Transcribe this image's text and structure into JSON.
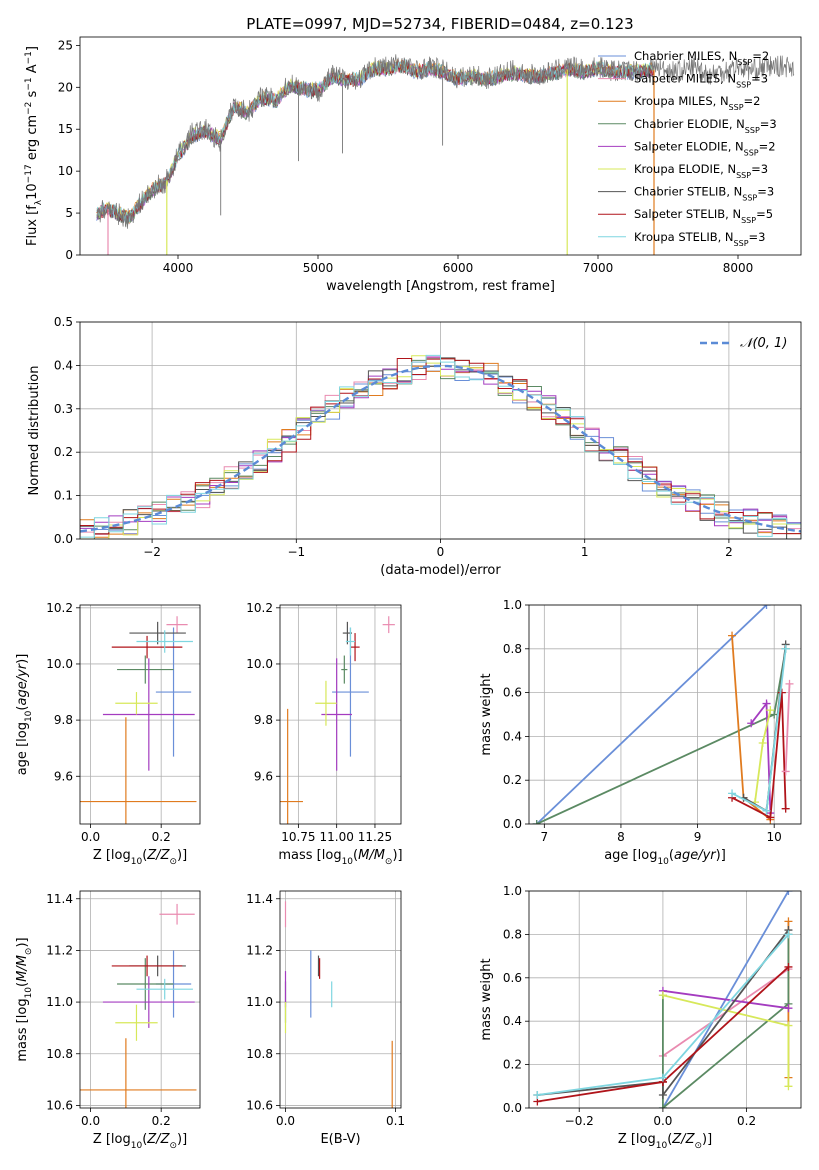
{
  "figure": {
    "title": "PLATE=0997, MJD=52734, FIBERID=0484, z=0.123"
  },
  "models": [
    {
      "name": "Chabrier MILES, N_SSP=2",
      "label_main": "Chabrier MILES, N",
      "label_sub": "SSP",
      "label_tail": "=2",
      "color": "#6a8fd8"
    },
    {
      "name": "Salpeter MILES, N_SSP=3",
      "label_main": "Salpeter MILES, N",
      "label_sub": "SSP",
      "label_tail": "=3",
      "color": "#e98bb0"
    },
    {
      "name": "Kroupa MILES, N_SSP=2",
      "label_main": "Kroupa MILES, N",
      "label_sub": "SSP",
      "label_tail": "=2",
      "color": "#e07b1f"
    },
    {
      "name": "Chabrier ELODIE, N_SSP=3",
      "label_main": "Chabrier ELODIE, N",
      "label_sub": "SSP",
      "label_tail": "=3",
      "color": "#5b8a63"
    },
    {
      "name": "Salpeter ELODIE, N_SSP=2",
      "label_main": "Salpeter ELODIE, N",
      "label_sub": "SSP",
      "label_tail": "=2",
      "color": "#a43cc0"
    },
    {
      "name": "Kroupa ELODIE, N_SSP=3",
      "label_main": "Kroupa ELODIE, N",
      "label_sub": "SSP",
      "label_tail": "=3",
      "color": "#d7e85a"
    },
    {
      "name": "Chabrier STELIB, N_SSP=3",
      "label_main": "Chabrier STELIB, N",
      "label_sub": "SSP",
      "label_tail": "=3",
      "color": "#555555"
    },
    {
      "name": "Salpeter STELIB, N_SSP=5",
      "label_main": "Salpeter STELIB, N",
      "label_sub": "SSP",
      "label_tail": "=5",
      "color": "#b0141a"
    },
    {
      "name": "Kroupa STELIB, N_SSP=3",
      "label_main": "Kroupa STELIB, N",
      "label_sub": "SSP",
      "label_tail": "=3",
      "color": "#7fd6e0"
    }
  ],
  "chart_data": [
    {
      "id": "spectrum",
      "type": "line",
      "xlabel": "wavelength [Angstrom, rest frame]",
      "ylabel": "Flux [f_λ 10^-17 erg cm^-2 s^-1 A^-1]",
      "xlim": [
        3300,
        8450
      ],
      "ylim": [
        0,
        26
      ],
      "xticks": [
        4000,
        5000,
        6000,
        7000,
        8000
      ],
      "yticks": [
        0,
        5,
        10,
        15,
        20,
        25
      ],
      "legend": "upper-right",
      "observed": {
        "name": "data",
        "color": "#777777",
        "x": [
          3420,
          3500,
          3560,
          3650,
          3700,
          3800,
          3850,
          3900,
          3950,
          4000,
          4100,
          4200,
          4300,
          4400,
          4500,
          4600,
          4700,
          4800,
          4900,
          5000,
          5100,
          5200,
          5300,
          5400,
          5500,
          5600,
          5700,
          5800,
          5900,
          6000,
          6100,
          6200,
          6300,
          6400,
          6500,
          6600,
          6700,
          6800,
          6900,
          7000,
          7100,
          7200,
          7300,
          7400,
          7500,
          7600,
          7700,
          7800,
          7900,
          8000,
          8100,
          8200,
          8300,
          8400
        ],
        "y": [
          5.0,
          5.6,
          5.0,
          4.3,
          5.6,
          7.5,
          8.3,
          8.4,
          10.0,
          12.0,
          14.5,
          15.0,
          13.5,
          18.0,
          17.0,
          19.0,
          18.5,
          20.5,
          20.0,
          19.5,
          21.5,
          21.0,
          21.0,
          22.5,
          22.5,
          23.0,
          22.0,
          22.5,
          22.0,
          21.0,
          21.5,
          21.0,
          21.5,
          22.0,
          21.5,
          21.5,
          22.0,
          22.5,
          22.0,
          22.5,
          22.0,
          22.0,
          22.0,
          22.5,
          22.0,
          22.0,
          22.5,
          21.5,
          22.0,
          22.5,
          22.0,
          22.5,
          22.5,
          22.5
        ]
      },
      "model_curve": {
        "x": [
          3420,
          3500,
          3560,
          3650,
          3700,
          3800,
          3850,
          3900,
          3950,
          4000,
          4100,
          4200,
          4300,
          4400,
          4500,
          4600,
          4700,
          4800,
          4900,
          5000,
          5100,
          5200,
          5300,
          5400,
          5500,
          5600,
          5700,
          5800,
          5900,
          6000,
          6100,
          6200,
          6300,
          6400,
          6500,
          6600,
          6700,
          6800,
          6900,
          7000,
          7100,
          7200,
          7300,
          7400
        ],
        "y": [
          5.0,
          5.5,
          5.0,
          4.4,
          5.5,
          7.4,
          8.2,
          8.3,
          9.8,
          11.8,
          14.2,
          14.8,
          13.8,
          17.6,
          17.0,
          18.8,
          18.4,
          20.2,
          19.8,
          19.6,
          21.2,
          20.8,
          21.0,
          22.2,
          22.2,
          22.6,
          21.8,
          22.2,
          21.8,
          21.0,
          21.3,
          20.9,
          21.3,
          21.7,
          21.3,
          21.4,
          21.8,
          22.2,
          21.8,
          22.2,
          21.8,
          21.8,
          21.9,
          22.1
        ]
      },
      "spikes": [
        {
          "x": 3500,
          "model": 1
        },
        {
          "x": 3920,
          "model": 5
        },
        {
          "x": 6780,
          "model": 5
        },
        {
          "x": 7400,
          "model": 2
        }
      ]
    },
    {
      "id": "residuals",
      "type": "histogram",
      "xlabel": "(data-model)/error",
      "ylabel": "Normed distribution",
      "xlim": [
        -2.5,
        2.5
      ],
      "ylim": [
        0,
        0.5
      ],
      "xticks": [
        -2,
        -1,
        0,
        1,
        2
      ],
      "yticks": [
        0.0,
        0.1,
        0.2,
        0.3,
        0.4,
        0.5
      ],
      "grid": true,
      "legend": "upper-right",
      "reference_label": "𝒩(0, 1)",
      "reference_color": "#5b8bd6",
      "bin_width": 0.1
    },
    {
      "id": "age-vs-Z",
      "type": "scatter",
      "xlabel": "Z [log10(Z/Z⊙)]",
      "ylabel": "age [log10(age/yr)]",
      "xlim": [
        -0.03,
        0.31
      ],
      "ylim": [
        9.43,
        10.21
      ],
      "xticks": [
        0.0,
        0.2
      ],
      "yticks": [
        9.6,
        9.8,
        10.0,
        10.2
      ],
      "grid": true,
      "points": [
        {
          "model": 0,
          "x": 0.235,
          "xerr": 0.05,
          "y": 9.9,
          "yerr": 0.23
        },
        {
          "model": 1,
          "x": 0.245,
          "xerr": 0.03,
          "y": 10.14,
          "yerr": 0.03
        },
        {
          "model": 2,
          "x": 0.1,
          "xerr": 0.2,
          "y": 9.51,
          "yerr": 0.3
        },
        {
          "model": 3,
          "x": 0.155,
          "xerr": 0.08,
          "y": 9.98,
          "yerr": 0.05
        },
        {
          "model": 4,
          "x": 0.165,
          "xerr": 0.13,
          "y": 9.82,
          "yerr": 0.2
        },
        {
          "model": 5,
          "x": 0.13,
          "xerr": 0.06,
          "y": 9.86,
          "yerr": 0.04
        },
        {
          "model": 6,
          "x": 0.19,
          "xerr": 0.08,
          "y": 10.11,
          "yerr": 0.04
        },
        {
          "model": 7,
          "x": 0.16,
          "xerr": 0.1,
          "y": 10.06,
          "yerr": 0.04
        },
        {
          "model": 8,
          "x": 0.21,
          "xerr": 0.08,
          "y": 10.08,
          "yerr": 0.04
        }
      ]
    },
    {
      "id": "age-vs-mass",
      "type": "scatter",
      "xlabel": "mass [log10(M/M⊙)]",
      "ylabel": "",
      "xlim": [
        10.63,
        11.42
      ],
      "ylim": [
        9.43,
        10.21
      ],
      "xticks": [
        10.75,
        11.0,
        11.25
      ],
      "xtick_labels": [
        "10.75",
        "11.00",
        "11.25"
      ],
      "yticks": [
        9.6,
        9.8,
        10.0,
        10.2
      ],
      "grid": true,
      "points": [
        {
          "model": 0,
          "x": 11.09,
          "xerr": 0.12,
          "y": 9.9,
          "yerr": 0.23
        },
        {
          "model": 1,
          "x": 11.34,
          "xerr": 0.04,
          "y": 10.14,
          "yerr": 0.03
        },
        {
          "model": 2,
          "x": 10.68,
          "xerr": 0.1,
          "y": 9.51,
          "yerr": 0.33
        },
        {
          "model": 3,
          "x": 11.05,
          "xerr": 0.02,
          "y": 9.98,
          "yerr": 0.05
        },
        {
          "model": 4,
          "x": 11.0,
          "xerr": 0.1,
          "y": 9.82,
          "yerr": 0.2
        },
        {
          "model": 5,
          "x": 10.93,
          "xerr": 0.07,
          "y": 9.86,
          "yerr": 0.08
        },
        {
          "model": 6,
          "x": 11.07,
          "xerr": 0.03,
          "y": 10.11,
          "yerr": 0.04
        },
        {
          "model": 7,
          "x": 11.12,
          "xerr": 0.03,
          "y": 10.06,
          "yerr": 0.05
        },
        {
          "model": 8,
          "x": 11.09,
          "xerr": 0.03,
          "y": 10.08,
          "yerr": 0.05
        }
      ]
    },
    {
      "id": "weight-vs-age",
      "type": "line",
      "xlabel": "age [log10(age/yr)]",
      "ylabel": "mass weight",
      "xlim": [
        6.8,
        10.35
      ],
      "ylim": [
        0,
        1
      ],
      "xticks": [
        7,
        8,
        9,
        10
      ],
      "yticks": [
        0.0,
        0.2,
        0.4,
        0.6,
        0.8,
        1.0
      ],
      "grid": true,
      "series": [
        {
          "model": 0,
          "x": [
            6.9,
            9.9
          ],
          "y": [
            0.0,
            1.0
          ]
        },
        {
          "model": 3,
          "x": [
            6.9,
            10.0,
            10.15
          ],
          "y": [
            0.0,
            0.5,
            0.8
          ]
        },
        {
          "model": 2,
          "x": [
            9.45,
            9.6,
            9.95
          ],
          "y": [
            0.86,
            0.12,
            0.02
          ]
        },
        {
          "model": 4,
          "x": [
            9.7,
            9.9,
            9.95
          ],
          "y": [
            0.46,
            0.55,
            0.05
          ]
        },
        {
          "model": 5,
          "x": [
            9.75,
            9.85,
            9.95
          ],
          "y": [
            0.1,
            0.37,
            0.52
          ]
        },
        {
          "model": 6,
          "x": [
            9.6,
            9.9,
            10.15
          ],
          "y": [
            0.12,
            0.06,
            0.82
          ]
        },
        {
          "model": 7,
          "x": [
            9.45,
            9.95,
            10.1,
            10.15
          ],
          "y": [
            0.12,
            0.03,
            0.6,
            0.07
          ]
        },
        {
          "model": 8,
          "x": [
            9.45,
            9.9,
            10.15
          ],
          "y": [
            0.14,
            0.06,
            0.8
          ]
        },
        {
          "model": 1,
          "x": [
            10.15,
            10.2
          ],
          "y": [
            0.24,
            0.64
          ]
        }
      ]
    },
    {
      "id": "mass-vs-Z",
      "type": "scatter",
      "xlabel": "Z [log10(Z/Z⊙)]",
      "ylabel": "mass [log10(M/M⊙)]",
      "xlim": [
        -0.03,
        0.31
      ],
      "ylim": [
        10.59,
        11.43
      ],
      "xticks": [
        0.0,
        0.2
      ],
      "yticks": [
        10.6,
        10.8,
        11.0,
        11.2,
        11.4
      ],
      "grid": true,
      "points": [
        {
          "model": 0,
          "x": 0.235,
          "xerr": 0.05,
          "y": 11.07,
          "yerr": 0.13
        },
        {
          "model": 1,
          "x": 0.245,
          "xerr": 0.05,
          "y": 11.34,
          "yerr": 0.04
        },
        {
          "model": 2,
          "x": 0.1,
          "xerr": 0.2,
          "y": 10.66,
          "yerr": 0.2
        },
        {
          "model": 3,
          "x": 0.155,
          "xerr": 0.08,
          "y": 11.07,
          "yerr": 0.1
        },
        {
          "model": 4,
          "x": 0.165,
          "xerr": 0.13,
          "y": 11.0,
          "yerr": 0.1
        },
        {
          "model": 5,
          "x": 0.13,
          "xerr": 0.06,
          "y": 10.92,
          "yerr": 0.07
        },
        {
          "model": 6,
          "x": 0.19,
          "xerr": 0.08,
          "y": 11.14,
          "yerr": 0.04
        },
        {
          "model": 7,
          "x": 0.16,
          "xerr": 0.1,
          "y": 11.14,
          "yerr": 0.04
        },
        {
          "model": 8,
          "x": 0.21,
          "xerr": 0.08,
          "y": 11.05,
          "yerr": 0.04
        }
      ]
    },
    {
      "id": "mass-vs-ebv",
      "type": "scatter",
      "xlabel": "E(B-V)",
      "ylabel": "",
      "xlim": [
        -0.005,
        0.105
      ],
      "ylim": [
        10.59,
        11.43
      ],
      "xticks": [
        0.0,
        0.1
      ],
      "yticks": [
        10.6,
        10.8,
        11.0,
        11.2,
        11.4
      ],
      "grid": true,
      "points": [
        {
          "model": 0,
          "x": 0.023,
          "xerr": 0.0,
          "y": 11.07,
          "yerr": 0.13
        },
        {
          "model": 1,
          "x": 0.0,
          "xerr": 0.0,
          "y": 11.34,
          "yerr": 0.05
        },
        {
          "model": 2,
          "x": 0.097,
          "xerr": 0.0,
          "y": 10.72,
          "yerr": 0.13
        },
        {
          "model": 3,
          "x": 0.0,
          "xerr": 0.0,
          "y": 11.0,
          "yerr": 0.08
        },
        {
          "model": 4,
          "x": 0.0,
          "xerr": 0.0,
          "y": 11.05,
          "yerr": 0.07
        },
        {
          "model": 5,
          "x": 0.0,
          "xerr": 0.0,
          "y": 10.94,
          "yerr": 0.06
        },
        {
          "model": 6,
          "x": 0.03,
          "xerr": 0.0,
          "y": 11.14,
          "yerr": 0.04
        },
        {
          "model": 7,
          "x": 0.031,
          "xerr": 0.0,
          "y": 11.13,
          "yerr": 0.04
        },
        {
          "model": 8,
          "x": 0.042,
          "xerr": 0.0,
          "y": 11.03,
          "yerr": 0.05
        }
      ]
    },
    {
      "id": "weight-vs-Z",
      "type": "line",
      "xlabel": "Z [log10(Z/Z⊙)]",
      "ylabel": "mass weight",
      "xlim": [
        -0.32,
        0.33
      ],
      "ylim": [
        0,
        1
      ],
      "xticks": [
        -0.2,
        0.0,
        0.2
      ],
      "yticks": [
        0.0,
        0.2,
        0.4,
        0.6,
        0.8,
        1.0
      ],
      "grid": true,
      "series": [
        {
          "model": 0,
          "x": [
            0.0,
            0.3
          ],
          "y": [
            0.0,
            1.0
          ]
        },
        {
          "model": 1,
          "x": [
            0.0,
            0.3
          ],
          "y": [
            0.24,
            0.64
          ]
        },
        {
          "model": 2,
          "x": [
            0.3,
            0.3
          ],
          "y": [
            0.14,
            0.86
          ]
        },
        {
          "model": 3,
          "x": [
            0.0,
            0.0,
            0.3,
            0.3
          ],
          "y": [
            0.52,
            0.0,
            0.48,
            0.8
          ]
        },
        {
          "model": 4,
          "x": [
            0.0,
            0.3
          ],
          "y": [
            0.54,
            0.46
          ]
        },
        {
          "model": 5,
          "x": [
            0.0,
            0.3,
            0.3
          ],
          "y": [
            0.52,
            0.38,
            0.1
          ]
        },
        {
          "model": 6,
          "x": [
            -0.3,
            0.0,
            0.0,
            0.3
          ],
          "y": [
            0.06,
            0.12,
            0.06,
            0.82
          ]
        },
        {
          "model": 7,
          "x": [
            -0.3,
            0.0,
            0.0,
            0.3
          ],
          "y": [
            0.03,
            0.12,
            0.12,
            0.65
          ]
        },
        {
          "model": 8,
          "x": [
            -0.3,
            0.0,
            0.3
          ],
          "y": [
            0.06,
            0.14,
            0.8
          ]
        }
      ]
    }
  ]
}
